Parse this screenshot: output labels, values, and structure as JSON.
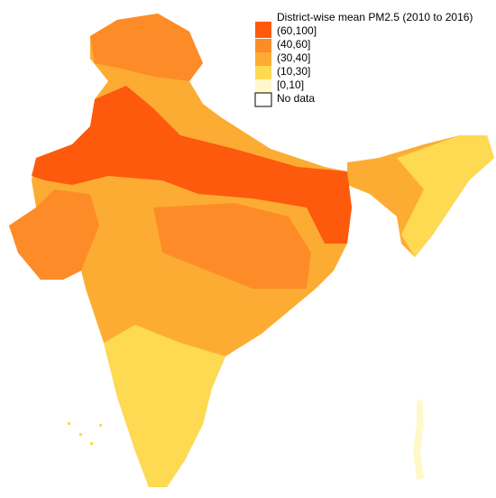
{
  "legend": {
    "title": "District-wise mean PM2.5 (2010 to 2016)",
    "items": [
      {
        "label": "(60,100]",
        "color": "#fd5a0e"
      },
      {
        "label": "(40,60]",
        "color": "#fd8c28"
      },
      {
        "label": "(30,40]",
        "color": "#fdac33"
      },
      {
        "label": "(10,30]",
        "color": "#fed952"
      },
      {
        "label": "[0,10]",
        "color": "#fff8c8"
      },
      {
        "label": "No data",
        "color": "#ffffff"
      }
    ]
  }
}
